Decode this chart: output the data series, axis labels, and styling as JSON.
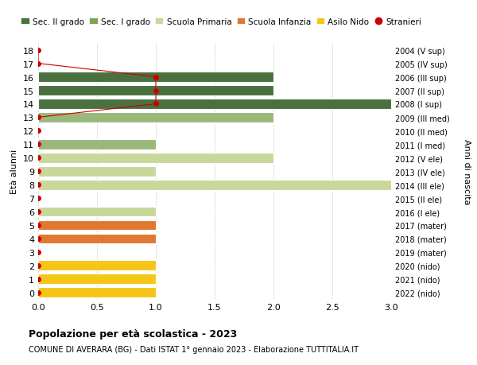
{
  "ages": [
    0,
    1,
    2,
    3,
    4,
    5,
    6,
    7,
    8,
    9,
    10,
    11,
    12,
    13,
    14,
    15,
    16,
    17,
    18
  ],
  "right_labels": [
    "2022 (nido)",
    "2021 (nido)",
    "2020 (nido)",
    "2019 (mater)",
    "2018 (mater)",
    "2017 (mater)",
    "2016 (I ele)",
    "2015 (II ele)",
    "2014 (III ele)",
    "2013 (IV ele)",
    "2012 (V ele)",
    "2011 (I med)",
    "2010 (II med)",
    "2009 (III med)",
    "2008 (I sup)",
    "2007 (II sup)",
    "2006 (III sup)",
    "2005 (IV sup)",
    "2004 (V sup)"
  ],
  "bar_values": [
    1,
    1,
    1,
    0,
    1,
    1,
    1,
    0,
    3,
    1,
    2,
    1,
    0,
    2,
    3,
    2,
    2,
    0,
    0
  ],
  "bar_colors": [
    "#f5c518",
    "#f5c518",
    "#f5c518",
    "#ffffff",
    "#e07830",
    "#e07830",
    "#c8d89a",
    "#c8d89a",
    "#c8d89a",
    "#c8d89a",
    "#c8d89a",
    "#9ab87a",
    "#9ab87a",
    "#9ab87a",
    "#4a7040",
    "#4a7040",
    "#4a7040",
    "#4a7040",
    "#4a7040"
  ],
  "stranieri_line_ages": [
    18,
    17,
    16,
    15,
    14,
    13
  ],
  "stranieri_line_vals": [
    0,
    0,
    1,
    1,
    1,
    0
  ],
  "stranieri_dot_all_ages": [
    0,
    1,
    2,
    3,
    4,
    5,
    6,
    7,
    8,
    9,
    10,
    11,
    12,
    13,
    14,
    15,
    16,
    17,
    18
  ],
  "legend_labels": [
    "Sec. II grado",
    "Sec. I grado",
    "Scuola Primaria",
    "Scuola Infanzia",
    "Asilo Nido",
    "Stranieri"
  ],
  "legend_colors": [
    "#4a7040",
    "#7da55a",
    "#c8d89a",
    "#e07830",
    "#f5c518",
    "#cc0000"
  ],
  "ylabel_left": "Età alunni",
  "ylabel_right": "Anni di nascita",
  "title": "Popolazione per età scolastica - 2023",
  "subtitle": "COMUNE DI AVERARA (BG) - Dati ISTAT 1° gennaio 2023 - Elaborazione TUTTITALIA.IT",
  "xlim": [
    0,
    3.0
  ],
  "bar_height": 0.75,
  "background_color": "#ffffff",
  "grid_color": "#cccccc",
  "stranieri_color": "#cc0000",
  "stranieri_dot_size": 4
}
